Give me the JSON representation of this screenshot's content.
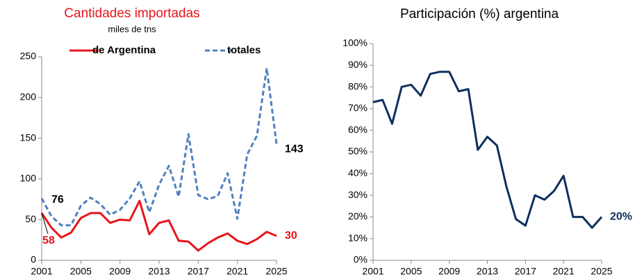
{
  "chart_data": [
    {
      "type": "line",
      "title": "Cantidades importadas",
      "subtitle": "miles de tns",
      "title_color": "#e8141b",
      "x": [
        2001,
        2002,
        2003,
        2004,
        2005,
        2006,
        2007,
        2008,
        2009,
        2010,
        2011,
        2012,
        2013,
        2014,
        2015,
        2016,
        2017,
        2018,
        2019,
        2020,
        2021,
        2022,
        2023,
        2024,
        2025
      ],
      "xlim": [
        2001,
        2025
      ],
      "xticks": [
        2001,
        2005,
        2009,
        2013,
        2017,
        2021,
        2025
      ],
      "ylim": [
        0,
        250
      ],
      "yticks": [
        0,
        50,
        100,
        150,
        200,
        250
      ],
      "legend": "top",
      "series": [
        {
          "name": "de Argentina",
          "color": "#e8141b",
          "dash": false,
          "label_color": "#e8141b",
          "values": [
            58,
            40,
            28,
            34,
            52,
            58,
            58,
            46,
            50,
            49,
            73,
            32,
            46,
            49,
            24,
            23,
            12,
            21,
            28,
            33,
            24,
            20,
            26,
            35,
            30
          ],
          "value_labels": [
            "58",
            null,
            null,
            null,
            null,
            null,
            null,
            null,
            null,
            null,
            null,
            null,
            null,
            null,
            null,
            null,
            null,
            null,
            null,
            null,
            null,
            null,
            null,
            null,
            "30"
          ]
        },
        {
          "name": "totales",
          "color": "#4f81bd",
          "dash": true,
          "label_color": "#000000",
          "values": [
            76,
            54,
            43,
            43,
            67,
            77,
            69,
            56,
            62,
            76,
            97,
            59,
            93,
            116,
            78,
            155,
            80,
            75,
            79,
            107,
            51,
            130,
            153,
            236,
            143
          ],
          "value_labels": [
            "76",
            null,
            null,
            null,
            null,
            null,
            null,
            null,
            null,
            null,
            null,
            null,
            null,
            null,
            null,
            null,
            null,
            null,
            null,
            null,
            null,
            null,
            null,
            null,
            "143"
          ]
        }
      ]
    },
    {
      "type": "line",
      "title": "Participación (%) argentina",
      "title_color": "#000000",
      "x": [
        2001,
        2002,
        2003,
        2004,
        2005,
        2006,
        2007,
        2008,
        2009,
        2010,
        2011,
        2012,
        2013,
        2014,
        2015,
        2016,
        2017,
        2018,
        2019,
        2020,
        2021,
        2022,
        2023,
        2024,
        2025
      ],
      "xlim": [
        2001,
        2025
      ],
      "xticks": [
        2001,
        2005,
        2009,
        2013,
        2017,
        2021,
        2025
      ],
      "ylim": [
        0,
        100
      ],
      "yticks": [
        {
          "value": 0,
          "label": "0%"
        },
        {
          "value": 10,
          "label": "10%"
        },
        {
          "value": 20,
          "label": "20%"
        },
        {
          "value": 30,
          "label": "30%"
        },
        {
          "value": 40,
          "label": "40%"
        },
        {
          "value": 50,
          "label": "50%"
        },
        {
          "value": 60,
          "label": "60%"
        },
        {
          "value": 70,
          "label": "70%"
        },
        {
          "value": 80,
          "label": "80%"
        },
        {
          "value": 90,
          "label": "90%"
        },
        {
          "value": 100,
          "label": "100%"
        }
      ],
      "series": [
        {
          "color": "#0d2f5e",
          "dash": false,
          "label_color": "#0d2f5e",
          "values": [
            73,
            74,
            63,
            80,
            81,
            76,
            86,
            87,
            87,
            78,
            79,
            51,
            57,
            53,
            34,
            19,
            16,
            30,
            28,
            32,
            39,
            20,
            20,
            15,
            20
          ],
          "value_labels": [
            null,
            null,
            null,
            null,
            null,
            null,
            null,
            null,
            null,
            null,
            null,
            null,
            null,
            null,
            null,
            null,
            null,
            null,
            null,
            null,
            null,
            null,
            null,
            null,
            "20%"
          ]
        }
      ]
    }
  ]
}
